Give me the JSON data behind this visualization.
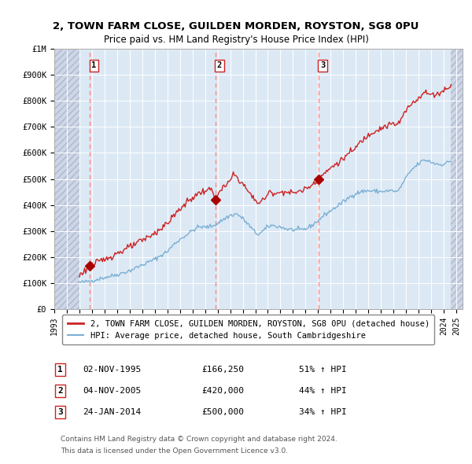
{
  "title": "2, TOWN FARM CLOSE, GUILDEN MORDEN, ROYSTON, SG8 0PU",
  "subtitle": "Price paid vs. HM Land Registry's House Price Index (HPI)",
  "sales": [
    {
      "num": 1,
      "date_num": 1995.833,
      "price": 166250,
      "label": "1",
      "date_str": "02-NOV-1995",
      "price_str": "£166,250",
      "pct": "51%"
    },
    {
      "num": 2,
      "date_num": 2005.833,
      "price": 420000,
      "label": "2",
      "date_str": "04-NOV-2005",
      "price_str": "£420,000",
      "pct": "44%"
    },
    {
      "num": 3,
      "date_num": 2014.0417,
      "price": 500000,
      "label": "3",
      "date_str": "24-JAN-2014",
      "price_str": "£500,000",
      "pct": "34%"
    }
  ],
  "hpi_color": "#7bafd4",
  "price_color": "#cc2222",
  "marker_color": "#aa0000",
  "vline_color": "#ff8888",
  "background_color": "#dce9f5",
  "xlim_left": 1993.0,
  "xlim_right": 2025.5,
  "hatch_right_start": 2024.583,
  "hatch_left_end": 1995.0,
  "ylim": [
    0,
    1000000
  ],
  "yticks": [
    0,
    100000,
    200000,
    300000,
    400000,
    500000,
    600000,
    700000,
    800000,
    900000,
    1000000
  ],
  "ytick_labels": [
    "£0",
    "£100K",
    "£200K",
    "£300K",
    "£400K",
    "£500K",
    "£600K",
    "£700K",
    "£800K",
    "£900K",
    "£1M"
  ],
  "xticks": [
    1993,
    1994,
    1995,
    1996,
    1997,
    1998,
    1999,
    2000,
    2001,
    2002,
    2003,
    2004,
    2005,
    2006,
    2007,
    2008,
    2009,
    2010,
    2011,
    2012,
    2013,
    2014,
    2015,
    2016,
    2017,
    2018,
    2019,
    2020,
    2021,
    2022,
    2023,
    2024,
    2025
  ],
  "legend_line1": "2, TOWN FARM CLOSE, GUILDEN MORDEN, ROYSTON, SG8 0PU (detached house)",
  "legend_line2": "HPI: Average price, detached house, South Cambridgeshire",
  "footer1": "Contains HM Land Registry data © Crown copyright and database right 2024.",
  "footer2": "This data is licensed under the Open Government Licence v3.0."
}
